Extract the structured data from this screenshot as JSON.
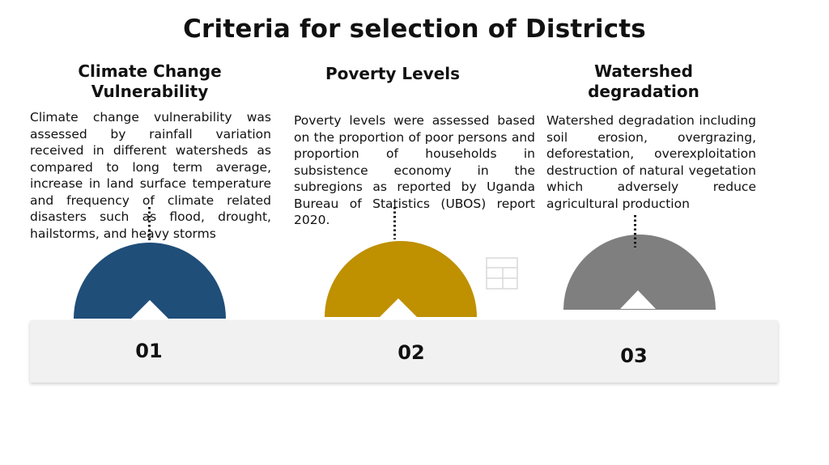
{
  "title": "Criteria for selection of Districts",
  "criteria": [
    {
      "heading": "Climate Change Vulnerability",
      "number": "01",
      "color": "#1f4e79",
      "description": "Climate change vulnerability was assessed by rainfall variation received in different watersheds as compared to long term average, increase in land surface temperature and frequency of climate related disasters such as flood, drought, hailstorms, and heavy storms"
    },
    {
      "heading": "Poverty Levels",
      "number": "02",
      "color": "#bf9000",
      "description": "Poverty levels were assessed based on the proportion of poor persons and proportion of households in subsistence economy in the subregions as reported by Uganda Bureau of Statistics (UBOS) report 2020."
    },
    {
      "heading": "Watershed degradation",
      "number": "03",
      "color": "#7f7f7f",
      "description": "Watershed degradation including soil erosion, overgrazing, deforestation, overexploitation destruction of natural vegetation which adversely reduce agricultural production"
    }
  ]
}
